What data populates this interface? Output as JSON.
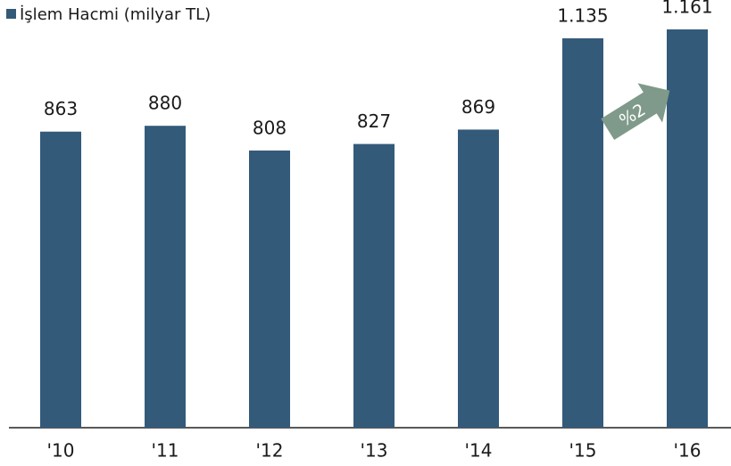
{
  "chart_data": {
    "type": "bar",
    "legend": "İşlem Hacmi (milyar TL)",
    "categories": [
      "'10",
      "'11",
      "'12",
      "'13",
      "'14",
      "'15",
      "'16"
    ],
    "values": [
      863,
      880,
      808,
      827,
      869,
      1135,
      1161
    ],
    "value_labels": [
      "863",
      "880",
      "808",
      "827",
      "869",
      "1.135",
      "1.161"
    ],
    "color": "#345a7a",
    "annotation": "%2",
    "annotation_color": "#7f9a8a"
  }
}
